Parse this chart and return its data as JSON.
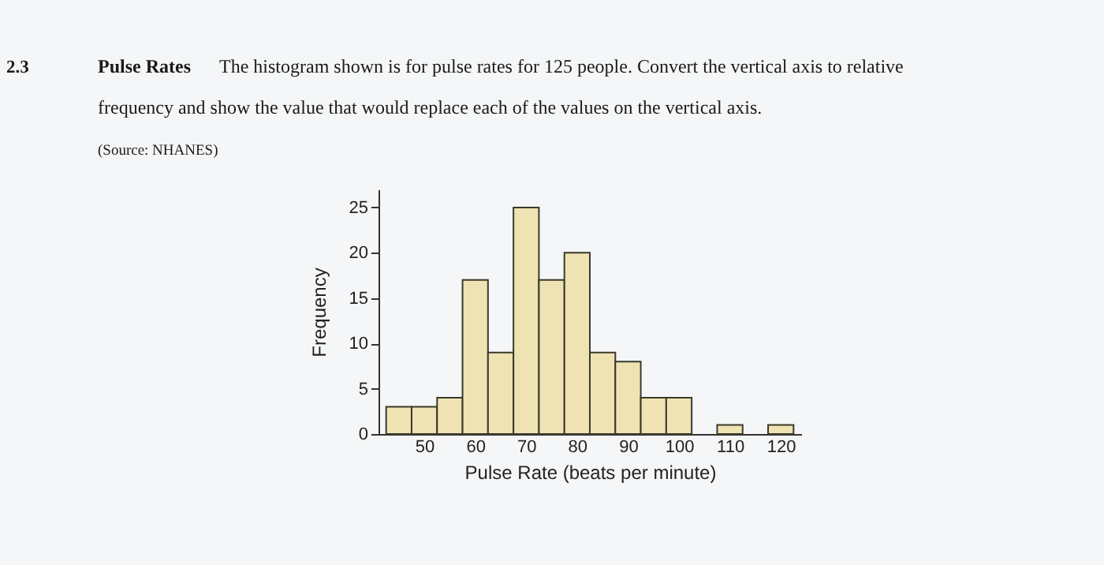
{
  "chart_data": {
    "type": "histogram",
    "title": "Pulse Rates",
    "subtitle": "The histogram shown is for pulse rates for 125 people. Convert the vertical axis to relative frequency and show the value that would replace each of the values on the vertical axis.",
    "annotations": [
      "2.3",
      "(Source: NHANES)"
    ],
    "xlabel": "Pulse Rate (beats per minute)",
    "ylabel": "Frequency",
    "bins": [
      42.5,
      47.5,
      52.5,
      57.5,
      62.5,
      67.5,
      72.5,
      77.5,
      82.5,
      87.5,
      92.5,
      97.5,
      102.5,
      107.5,
      112.5,
      117.5,
      122.5
    ],
    "values": [
      3,
      3,
      4,
      17,
      9,
      25,
      17,
      20,
      9,
      8,
      4,
      4,
      0,
      1,
      0,
      1
    ],
    "color": "#efe3b4",
    "xlim": [
      41,
      124
    ],
    "xticks": [
      50,
      60,
      70,
      80,
      90,
      100,
      110,
      120
    ],
    "ylim": [
      0,
      27
    ],
    "yticks": [
      0,
      5,
      10,
      15,
      20,
      25
    ],
    "grid": false
  }
}
